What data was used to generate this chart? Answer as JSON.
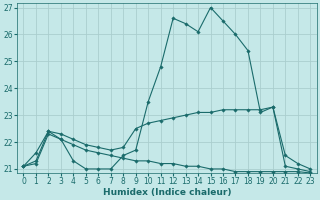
{
  "title": "",
  "xlabel": "Humidex (Indice chaleur)",
  "bg_color": "#c5e8e8",
  "grid_color": "#aacece",
  "line_color": "#1a6b6b",
  "xlim": [
    -0.5,
    23.5
  ],
  "ylim": [
    20.85,
    27.15
  ],
  "yticks": [
    21,
    22,
    23,
    24,
    25,
    26,
    27
  ],
  "xticks": [
    0,
    1,
    2,
    3,
    4,
    5,
    6,
    7,
    8,
    9,
    10,
    11,
    12,
    13,
    14,
    15,
    16,
    17,
    18,
    19,
    20,
    21,
    22,
    23
  ],
  "series": {
    "line1": {
      "x": [
        0,
        1,
        2,
        3,
        4,
        5,
        6,
        7,
        8,
        9,
        10,
        11,
        12,
        13,
        14,
        15,
        16,
        17,
        18,
        19,
        20,
        21,
        22,
        23
      ],
      "y": [
        21.1,
        21.6,
        22.4,
        22.1,
        21.3,
        21.0,
        21.0,
        21.0,
        21.5,
        21.7,
        23.5,
        24.8,
        26.6,
        26.4,
        26.1,
        27.0,
        26.5,
        26.0,
        25.4,
        23.1,
        23.3,
        21.1,
        21.0,
        20.9
      ]
    },
    "line2": {
      "x": [
        0,
        1,
        2,
        3,
        4,
        5,
        6,
        7,
        8,
        9,
        10,
        11,
        12,
        13,
        14,
        15,
        16,
        17,
        18,
        19,
        20,
        21,
        22,
        23
      ],
      "y": [
        21.1,
        21.3,
        22.4,
        22.3,
        22.1,
        21.9,
        21.8,
        21.7,
        21.8,
        22.5,
        22.7,
        22.8,
        22.9,
        23.0,
        23.1,
        23.1,
        23.2,
        23.2,
        23.2,
        23.2,
        23.3,
        21.5,
        21.2,
        21.0
      ]
    },
    "line3": {
      "x": [
        0,
        1,
        2,
        3,
        4,
        5,
        6,
        7,
        8,
        9,
        10,
        11,
        12,
        13,
        14,
        15,
        16,
        17,
        18,
        19,
        20,
        21,
        22,
        23
      ],
      "y": [
        21.1,
        21.2,
        22.3,
        22.1,
        21.9,
        21.7,
        21.6,
        21.5,
        21.4,
        21.3,
        21.3,
        21.2,
        21.2,
        21.1,
        21.1,
        21.0,
        21.0,
        20.9,
        20.9,
        20.9,
        20.9,
        20.9,
        20.9,
        20.85
      ]
    }
  }
}
